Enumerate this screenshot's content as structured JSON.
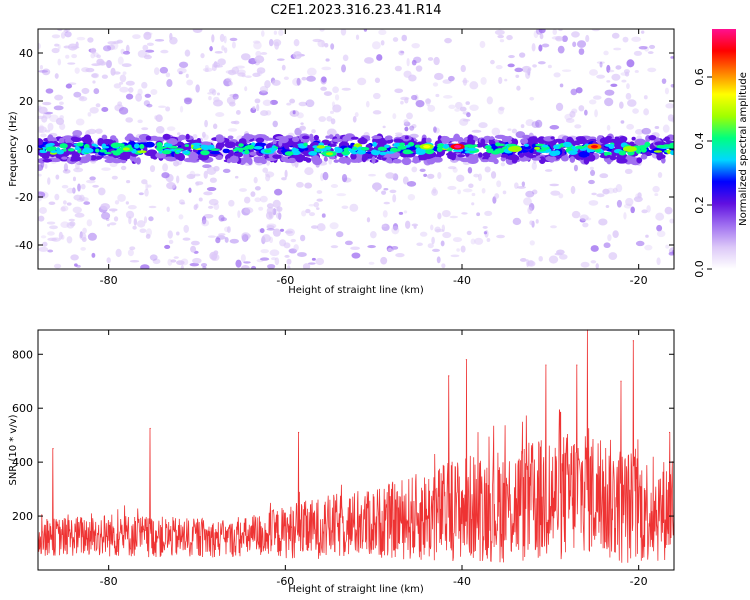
{
  "title": "C2E1.2023.316.23.41.R14",
  "top_panel": {
    "xlabel": "Height of straight line (km)",
    "ylabel": "Frequency (Hz)",
    "colorbar_label": "Normalized spectral amplitude"
  },
  "bottom_panel": {
    "xlabel": "Height of straight line (km)",
    "ylabel": "SNR (10 * v/v)"
  },
  "colors": {
    "snr_line": "#ee3333",
    "colormap": [
      "#ffffff",
      "#dcc8f8",
      "#a070f0",
      "#6010e0",
      "#0000ff",
      "#00d8ff",
      "#00ff80",
      "#a0ff00",
      "#ffff00",
      "#ff8000",
      "#ff0000",
      "#ff1090"
    ]
  },
  "chart_data": [
    {
      "type": "heatmap",
      "title": "C2E1.2023.316.23.41.R14",
      "xlabel": "Height of straight line (km)",
      "ylabel": "Frequency (Hz)",
      "xlim": [
        -88,
        -16
      ],
      "ylim": [
        -50,
        50
      ],
      "xticks": [
        -80,
        -60,
        -40,
        -20
      ],
      "xtick_labels": [
        "-80",
        "-60",
        "-40",
        "-20"
      ],
      "yticks": [
        -40,
        -20,
        0,
        20,
        40
      ],
      "ytick_labels": [
        "-40",
        "-20",
        "0",
        "20",
        "40"
      ],
      "description_band": {
        "center_hz": 0,
        "half_width_hz": 4
      },
      "peak_points": [
        {
          "x": -78,
          "y": 0,
          "value": 0.45
        },
        {
          "x": -62,
          "y": -1,
          "value": 0.4
        },
        {
          "x": -55,
          "y": -2,
          "value": 0.45
        },
        {
          "x": -44,
          "y": 1,
          "value": 0.55
        },
        {
          "x": -40.5,
          "y": 1,
          "value": 0.75
        },
        {
          "x": -34,
          "y": 0,
          "value": 0.5
        },
        {
          "x": -25,
          "y": 1,
          "value": 0.65
        },
        {
          "x": -21,
          "y": 0,
          "value": 0.5
        }
      ],
      "colorbar": {
        "label": "Normalized spectral amplitude",
        "range": [
          0,
          0.75
        ],
        "ticks": [
          0.0,
          0.2,
          0.4,
          0.6
        ],
        "tick_labels": [
          "0.0",
          "0.2",
          "0.4",
          "0.6"
        ]
      }
    },
    {
      "type": "line",
      "xlabel": "Height of straight line (km)",
      "ylabel": "SNR (10 * v/v)",
      "xlim": [
        -88,
        -16
      ],
      "ylim": [
        0,
        890
      ],
      "xticks": [
        -80,
        -60,
        -40,
        -20
      ],
      "xtick_labels": [
        "-80",
        "-60",
        "-40",
        "-20"
      ],
      "yticks": [
        200,
        400,
        600,
        800
      ],
      "ytick_labels": [
        "200",
        "400",
        "600",
        "800"
      ],
      "series": [
        {
          "name": "SNR",
          "envelope_x": [
            -88,
            -80,
            -72,
            -66,
            -60,
            -55,
            -50,
            -44,
            -40,
            -35,
            -30,
            -26,
            -22,
            -18,
            -16
          ],
          "envelope_mean": [
            120,
            130,
            120,
            115,
            140,
            160,
            175,
            200,
            230,
            240,
            260,
            300,
            240,
            220,
            230
          ],
          "envelope_spread": [
            90,
            110,
            100,
            90,
            130,
            160,
            170,
            230,
            260,
            290,
            320,
            320,
            300,
            260,
            250
          ],
          "peaks": [
            {
              "x": -86.3,
              "y": 450
            },
            {
              "x": -75.3,
              "y": 525
            },
            {
              "x": -58.5,
              "y": 510
            },
            {
              "x": -41.5,
              "y": 720
            },
            {
              "x": -39.5,
              "y": 780
            },
            {
              "x": -30.5,
              "y": 760
            },
            {
              "x": -27.0,
              "y": 760
            },
            {
              "x": -25.8,
              "y": 890
            },
            {
              "x": -22.0,
              "y": 700
            },
            {
              "x": -20.6,
              "y": 850
            },
            {
              "x": -16.5,
              "y": 510
            }
          ]
        }
      ]
    }
  ]
}
